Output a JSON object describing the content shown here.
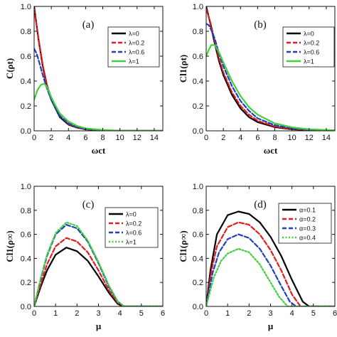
{
  "chart_data": [
    {
      "type": "line",
      "panel": "(a)",
      "ylabel": "C(ρt)",
      "xlabel": "ωct",
      "xlim": [
        0,
        15
      ],
      "ylim": [
        0,
        1.0
      ],
      "xticks": [
        0,
        2,
        4,
        6,
        8,
        10,
        12,
        14
      ],
      "yticks": [
        0.0,
        0.2,
        0.4,
        0.6,
        0.8,
        1.0
      ],
      "xtick_labels": [
        "0",
        "2",
        "4",
        "6",
        "8",
        "10",
        "12",
        "14"
      ],
      "ytick_labels": [
        "0.0",
        "0.2",
        "0.4",
        "0.6",
        "0.8",
        "1.0"
      ],
      "legend_position": "top-right",
      "series": [
        {
          "name": "λ=0",
          "color": "#000000",
          "dash": "solid",
          "x": [
            0,
            0.5,
            1,
            1.5,
            2,
            3,
            4,
            5,
            6,
            8,
            10,
            15
          ],
          "y": [
            1.0,
            0.74,
            0.52,
            0.36,
            0.25,
            0.11,
            0.05,
            0.025,
            0.012,
            0.003,
            0.001,
            0
          ]
        },
        {
          "name": "λ=0.2",
          "color": "#e41a1c",
          "dash": "dashed",
          "x": [
            0,
            0.5,
            1,
            1.5,
            2,
            3,
            4,
            5,
            6,
            8,
            10,
            15
          ],
          "y": [
            0.98,
            0.75,
            0.53,
            0.37,
            0.26,
            0.12,
            0.055,
            0.027,
            0.013,
            0.003,
            0.001,
            0
          ]
        },
        {
          "name": "λ=0.6",
          "color": "#1f3fbf",
          "dash": "dashed",
          "x": [
            0,
            0.3,
            0.6,
            1,
            1.5,
            2,
            3,
            4,
            5,
            6,
            8,
            10,
            15
          ],
          "y": [
            0.66,
            0.62,
            0.55,
            0.45,
            0.34,
            0.25,
            0.12,
            0.06,
            0.03,
            0.015,
            0.004,
            0.001,
            0
          ]
        },
        {
          "name": "λ=1",
          "color": "#3fd13a",
          "dash": "solid",
          "x": [
            0,
            0.4,
            0.8,
            1.2,
            1.6,
            2,
            2.5,
            3,
            4,
            5,
            6,
            8,
            10,
            15
          ],
          "y": [
            0.25,
            0.33,
            0.37,
            0.38,
            0.34,
            0.27,
            0.2,
            0.14,
            0.075,
            0.04,
            0.02,
            0.006,
            0.002,
            0.002
          ]
        }
      ]
    },
    {
      "type": "line",
      "panel": "(b)",
      "ylabel": "Cl1(ρt)",
      "xlabel": "ωct",
      "xlim": [
        0,
        15
      ],
      "ylim": [
        0,
        1.0
      ],
      "xticks": [
        0,
        2,
        4,
        6,
        8,
        10,
        12,
        14
      ],
      "yticks": [
        0.0,
        0.2,
        0.4,
        0.6,
        0.8,
        1.0
      ],
      "xtick_labels": [
        "0",
        "2",
        "4",
        "6",
        "8",
        "10",
        "12",
        "14"
      ],
      "ytick_labels": [
        "0.0",
        "0.2",
        "0.4",
        "0.6",
        "0.8",
        "1.0"
      ],
      "legend_position": "top-right",
      "series": [
        {
          "name": "λ=0",
          "color": "#000000",
          "dash": "solid",
          "x": [
            0,
            0.5,
            1,
            1.5,
            2,
            3,
            4,
            5,
            6,
            8,
            10,
            12,
            15
          ],
          "y": [
            1.0,
            0.86,
            0.7,
            0.56,
            0.45,
            0.29,
            0.18,
            0.11,
            0.07,
            0.03,
            0.012,
            0.005,
            0.002
          ]
        },
        {
          "name": "λ=0.2",
          "color": "#e41a1c",
          "dash": "dashed",
          "x": [
            0,
            0.5,
            1,
            1.5,
            2,
            3,
            4,
            5,
            6,
            8,
            10,
            12,
            15
          ],
          "y": [
            0.98,
            0.87,
            0.72,
            0.58,
            0.47,
            0.31,
            0.2,
            0.13,
            0.08,
            0.035,
            0.015,
            0.006,
            0.002
          ]
        },
        {
          "name": "λ=0.6",
          "color": "#1f3fbf",
          "dash": "dashed",
          "x": [
            0,
            0.3,
            0.6,
            1,
            1.5,
            2,
            3,
            4,
            5,
            6,
            8,
            10,
            12,
            15
          ],
          "y": [
            0.86,
            0.85,
            0.81,
            0.74,
            0.62,
            0.52,
            0.36,
            0.24,
            0.16,
            0.1,
            0.045,
            0.02,
            0.008,
            0.003
          ]
        },
        {
          "name": "λ=1",
          "color": "#3fd13a",
          "dash": "solid",
          "x": [
            0,
            0.3,
            0.6,
            1,
            1.5,
            2,
            3,
            4,
            5,
            6,
            8,
            10,
            12,
            15
          ],
          "y": [
            0.6,
            0.65,
            0.69,
            0.69,
            0.63,
            0.55,
            0.4,
            0.28,
            0.19,
            0.13,
            0.06,
            0.028,
            0.012,
            0.004
          ]
        }
      ]
    },
    {
      "type": "line",
      "panel": "(c)",
      "ylabel": "Cl1(ρ∞)",
      "xlabel": "μ",
      "xlim": [
        0,
        6
      ],
      "ylim": [
        0,
        1.0
      ],
      "xticks": [
        0,
        1,
        2,
        3,
        4,
        5,
        6
      ],
      "yticks": [
        0.0,
        0.2,
        0.4,
        0.6,
        0.8,
        1.0
      ],
      "xtick_labels": [
        "0",
        "1",
        "2",
        "3",
        "4",
        "5",
        "6"
      ],
      "ytick_labels": [
        "0.0",
        "0.2",
        "0.4",
        "0.6",
        "0.8",
        "1.0"
      ],
      "legend_position": "top-right",
      "series": [
        {
          "name": "λ=0",
          "color": "#000000",
          "dash": "solid",
          "x": [
            0,
            0.3,
            0.6,
            1.0,
            1.5,
            2.0,
            2.5,
            3.0,
            3.5,
            3.9,
            4.2,
            6
          ],
          "y": [
            0,
            0.16,
            0.3,
            0.43,
            0.49,
            0.46,
            0.38,
            0.25,
            0.11,
            0.02,
            0,
            0
          ]
        },
        {
          "name": "λ=0.2",
          "color": "#e41a1c",
          "dash": "dashed",
          "x": [
            0,
            0.3,
            0.6,
            1.0,
            1.5,
            2.0,
            2.5,
            3.0,
            3.5,
            3.9,
            4.2,
            6
          ],
          "y": [
            0,
            0.18,
            0.35,
            0.5,
            0.57,
            0.54,
            0.45,
            0.3,
            0.13,
            0.03,
            0,
            0
          ]
        },
        {
          "name": "λ=0.6",
          "color": "#1f3fbf",
          "dash": "dashed",
          "x": [
            0,
            0.3,
            0.6,
            1.0,
            1.5,
            2.0,
            2.5,
            3.0,
            3.5,
            3.9,
            4.2,
            6
          ],
          "y": [
            0,
            0.22,
            0.42,
            0.6,
            0.68,
            0.65,
            0.54,
            0.36,
            0.16,
            0.04,
            0,
            0
          ]
        },
        {
          "name": "λ=1",
          "color": "#3fd13a",
          "dash": "dotted",
          "x": [
            0,
            0.3,
            0.6,
            1.0,
            1.5,
            2.0,
            2.5,
            3.0,
            3.5,
            3.9,
            4.2,
            6
          ],
          "y": [
            0,
            0.23,
            0.43,
            0.61,
            0.7,
            0.67,
            0.55,
            0.37,
            0.17,
            0.04,
            0,
            0
          ]
        }
      ]
    },
    {
      "type": "line",
      "panel": "(d)",
      "ylabel": "Cl1(ρ∞)",
      "xlabel": "μ",
      "xlim": [
        0,
        6
      ],
      "ylim": [
        0,
        1.0
      ],
      "xticks": [
        0,
        1,
        2,
        3,
        4,
        5,
        6
      ],
      "yticks": [
        0.0,
        0.2,
        0.4,
        0.6,
        0.8,
        1.0
      ],
      "xtick_labels": [
        "0",
        "1",
        "2",
        "3",
        "4",
        "5",
        "6"
      ],
      "ytick_labels": [
        "0.0",
        "0.2",
        "0.4",
        "0.6",
        "0.8",
        "1.0"
      ],
      "legend_position": "top-right",
      "series": [
        {
          "name": "α=0.1",
          "color": "#000000",
          "dash": "solid",
          "x": [
            0,
            0.2,
            0.5,
            1.0,
            1.5,
            2.0,
            2.5,
            3.0,
            3.5,
            4.0,
            4.5,
            4.8,
            6
          ],
          "y": [
            0,
            0.3,
            0.6,
            0.76,
            0.79,
            0.77,
            0.7,
            0.58,
            0.42,
            0.22,
            0.04,
            0,
            0
          ]
        },
        {
          "name": "α=0.2",
          "color": "#e41a1c",
          "dash": "dashed",
          "x": [
            0,
            0.25,
            0.5,
            1.0,
            1.5,
            2.0,
            2.5,
            3.0,
            3.5,
            4.0,
            4.4,
            6
          ],
          "y": [
            0,
            0.3,
            0.5,
            0.66,
            0.7,
            0.68,
            0.6,
            0.47,
            0.3,
            0.1,
            0,
            0
          ]
        },
        {
          "name": "α=0.3",
          "color": "#1f3fbf",
          "dash": "dashed",
          "x": [
            0,
            0.3,
            0.6,
            1.0,
            1.5,
            2.0,
            2.5,
            3.0,
            3.5,
            3.9,
            4.2,
            6
          ],
          "y": [
            0,
            0.28,
            0.45,
            0.56,
            0.6,
            0.57,
            0.48,
            0.34,
            0.17,
            0.04,
            0,
            0
          ]
        },
        {
          "name": "α=0.4",
          "color": "#3fd13a",
          "dash": "dotted",
          "x": [
            0,
            0.35,
            0.7,
            1.0,
            1.5,
            2.0,
            2.5,
            3.0,
            3.4,
            3.8,
            6
          ],
          "y": [
            0,
            0.24,
            0.38,
            0.44,
            0.48,
            0.45,
            0.35,
            0.2,
            0.08,
            0,
            0
          ]
        }
      ]
    }
  ]
}
